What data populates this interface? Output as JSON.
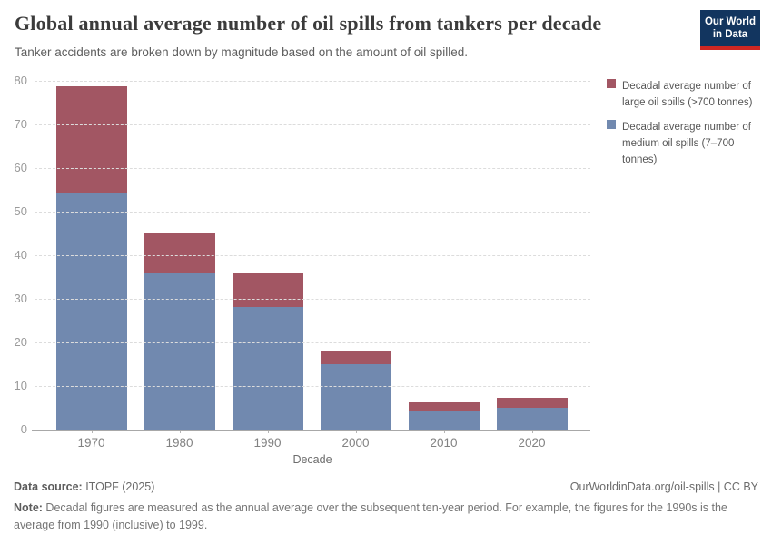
{
  "header": {
    "title": "Global annual average number of oil spills from tankers per decade",
    "subtitle": "Tanker accidents are broken down by magnitude based on the amount of oil spilled.",
    "logo": {
      "line1": "Our World",
      "line2": "in Data",
      "bg_color": "#12355f",
      "strip_color": "#cf2722"
    }
  },
  "legend": {
    "items": [
      {
        "label": "Decadal average number of large oil spills (>700 tonnes)",
        "color": "#a25663"
      },
      {
        "label": "Decadal average number of medium oil spills (7–700 tonnes)",
        "color": "#7189af"
      }
    ]
  },
  "chart_data": {
    "type": "bar",
    "stacked": true,
    "title": "Global annual average number of oil spills from tankers per decade",
    "subtitle": "Tanker accidents are broken down by magnitude based on the amount of oil spilled.",
    "categories": [
      "1970",
      "1980",
      "1990",
      "2000",
      "2010",
      "2020"
    ],
    "series": [
      {
        "name": "Decadal average number of medium oil spills (7–700 tonnes)",
        "color": "#7189af",
        "values": [
          54.3,
          35.9,
          28.1,
          14.9,
          4.4,
          5.0
        ]
      },
      {
        "name": "Decadal average number of large oil spills (>700 tonnes)",
        "color": "#a25663",
        "values": [
          24.5,
          9.4,
          7.7,
          3.2,
          1.8,
          2.2
        ]
      }
    ],
    "totals": [
      78.8,
      45.3,
      35.8,
      18.1,
      6.2,
      7.2
    ],
    "xlabel": "Decade",
    "ylabel": "",
    "ylim": [
      0,
      80
    ],
    "yticks": [
      0,
      10,
      20,
      30,
      40,
      50,
      60,
      70,
      80
    ],
    "grid": "horizontal-dashed",
    "legend_position": "right"
  },
  "footer": {
    "source_label": "Data source:",
    "source_value": " ITOPF (2025)",
    "link": "OurWorldinData.org/oil-spills | CC BY",
    "note_label": "Note:",
    "note_value": " Decadal figures are measured as the annual average over the subsequent ten-year period. For example, the figures for the 1990s is the average from 1990 (inclusive) to 1999."
  }
}
